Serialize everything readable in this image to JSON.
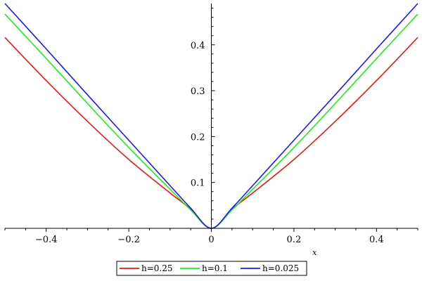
{
  "chart_data": {
    "type": "line",
    "title": "",
    "xlabel": "x",
    "ylabel": "",
    "xlim": [
      -0.5,
      0.5
    ],
    "ylim": [
      0,
      0.49
    ],
    "x_ticks": [
      {
        "value": -0.4,
        "label": "−0.4"
      },
      {
        "value": -0.2,
        "label": "−0.2"
      },
      {
        "value": 0,
        "label": "0"
      },
      {
        "value": 0.2,
        "label": "0.2"
      },
      {
        "value": 0.4,
        "label": "0.4"
      }
    ],
    "y_ticks": [
      {
        "value": 0.1,
        "label": "0.1"
      },
      {
        "value": 0.2,
        "label": "0.2"
      },
      {
        "value": 0.3,
        "label": "0.3"
      },
      {
        "value": 0.4,
        "label": "0.4"
      }
    ],
    "x_minor_step": 0.05,
    "y_minor_step": 0.02,
    "grid": false,
    "legend_position": "bottom-center",
    "series": [
      {
        "name": "h=0.25",
        "color": "#e41a1c",
        "x": [
          -0.5,
          -0.4,
          -0.3,
          -0.2,
          -0.1,
          -0.05,
          0,
          0.05,
          0.1,
          0.2,
          0.3,
          0.4,
          0.5
        ],
        "y": [
          0.416,
          0.322,
          0.233,
          0.15,
          0.077,
          0.042,
          0.0,
          0.042,
          0.077,
          0.15,
          0.233,
          0.322,
          0.416
        ]
      },
      {
        "name": "h=0.1",
        "color": "#1aef1a",
        "x": [
          -0.5,
          -0.4,
          -0.3,
          -0.2,
          -0.1,
          -0.05,
          0,
          0.05,
          0.1,
          0.2,
          0.3,
          0.4,
          0.5
        ],
        "y": [
          0.467,
          0.37,
          0.272,
          0.176,
          0.085,
          0.04,
          0.0,
          0.04,
          0.085,
          0.176,
          0.272,
          0.37,
          0.467
        ]
      },
      {
        "name": "h=0.025",
        "color": "#1a1aee",
        "x": [
          -0.5,
          -0.4,
          -0.3,
          -0.2,
          -0.1,
          -0.05,
          0,
          0.05,
          0.1,
          0.2,
          0.3,
          0.4,
          0.5
        ],
        "y": [
          0.49,
          0.391,
          0.291,
          0.192,
          0.093,
          0.044,
          0.0,
          0.044,
          0.093,
          0.192,
          0.291,
          0.391,
          0.49
        ]
      }
    ]
  }
}
